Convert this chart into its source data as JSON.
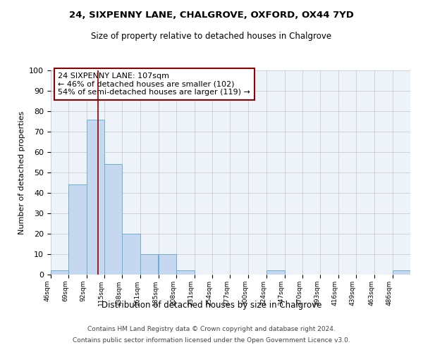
{
  "title1": "24, SIXPENNY LANE, CHALGROVE, OXFORD, OX44 7YD",
  "title2": "Size of property relative to detached houses in Chalgrove",
  "xlabel": "Distribution of detached houses by size in Chalgrove",
  "ylabel": "Number of detached properties",
  "bin_edges": [
    46,
    69,
    92,
    115,
    138,
    161,
    185,
    208,
    231,
    254,
    277,
    300,
    324,
    347,
    370,
    393,
    416,
    439,
    463,
    486,
    509
  ],
  "bar_heights": [
    2,
    44,
    76,
    54,
    20,
    10,
    10,
    2,
    0,
    0,
    0,
    0,
    2,
    0,
    0,
    0,
    0,
    0,
    0,
    2
  ],
  "bar_color": "#c5d8f0",
  "bar_edge_color": "#6baed6",
  "grid_color": "#cccccc",
  "vline_x": 107,
  "vline_color": "#8b0000",
  "annotation_box_text": "24 SIXPENNY LANE: 107sqm\n← 46% of detached houses are smaller (102)\n54% of semi-detached houses are larger (119) →",
  "annotation_box_edgecolor": "#8b0000",
  "annotation_box_facecolor": "white",
  "ylim": [
    0,
    100
  ],
  "yticks": [
    0,
    10,
    20,
    30,
    40,
    50,
    60,
    70,
    80,
    90,
    100
  ],
  "footer1": "Contains HM Land Registry data © Crown copyright and database right 2024.",
  "footer2": "Contains public sector information licensed under the Open Government Licence v3.0.",
  "bg_color": "#eef2f9"
}
